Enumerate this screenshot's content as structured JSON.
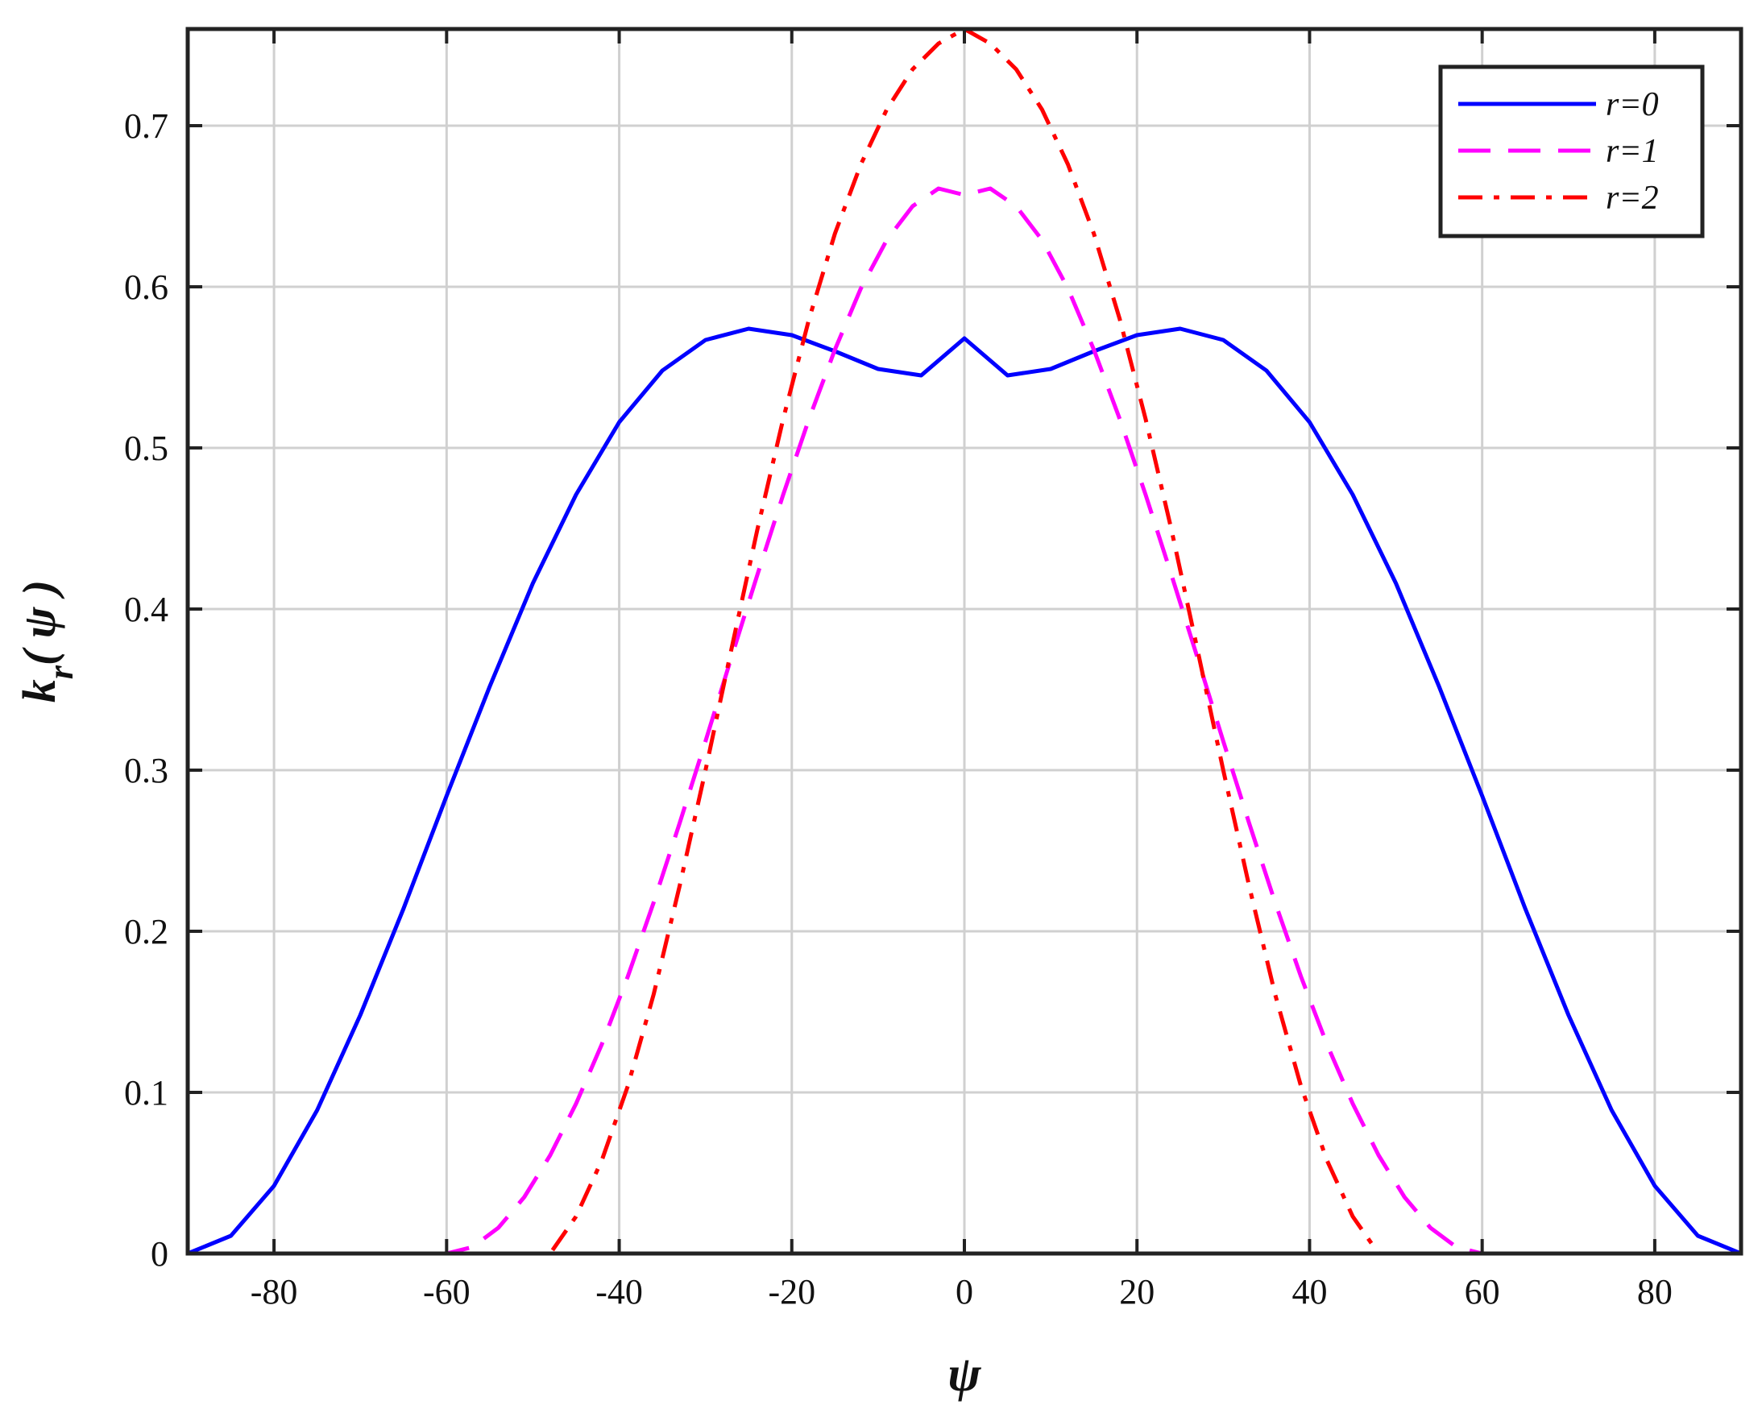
{
  "chart_data": {
    "type": "line",
    "title": "",
    "xlabel": "ψ",
    "ylabel": {
      "main": "k",
      "sub": "r",
      "arg": "( ψ )"
    },
    "xlim": [
      -90,
      90
    ],
    "ylim": [
      0,
      0.76
    ],
    "xticks": [
      -80,
      -60,
      -40,
      -20,
      0,
      20,
      40,
      60,
      80
    ],
    "yticks": [
      0,
      0.1,
      0.2,
      0.3,
      0.4,
      0.5,
      0.6,
      0.7
    ],
    "xtick_labels": [
      "-80",
      "-60",
      "-40",
      "-20",
      "0",
      "20",
      "40",
      "60",
      "80"
    ],
    "ytick_labels": [
      "0",
      "0.1",
      "0.2",
      "0.3",
      "0.4",
      "0.5",
      "0.6",
      "0.7"
    ],
    "grid": true,
    "legend_position": "top-right",
    "series": [
      {
        "name": "r=0",
        "color": "#0000ff",
        "style": "solid",
        "x": [
          -90,
          -85,
          -80,
          -75,
          -70,
          -65,
          -60,
          -55,
          -50,
          -45,
          -40,
          -35,
          -30,
          -25,
          -20,
          -15,
          -10,
          -5,
          0,
          5,
          10,
          15,
          20,
          25,
          30,
          35,
          40,
          45,
          50,
          55,
          60,
          65,
          70,
          75,
          80,
          85,
          90
        ],
        "y": [
          0,
          0.011,
          0.042,
          0.089,
          0.148,
          0.214,
          0.284,
          0.352,
          0.416,
          0.471,
          0.516,
          0.548,
          0.567,
          0.574,
          0.57,
          0.56,
          0.549,
          0.545,
          0.568,
          0.545,
          0.549,
          0.56,
          0.57,
          0.574,
          0.567,
          0.548,
          0.516,
          0.471,
          0.416,
          0.352,
          0.284,
          0.214,
          0.148,
          0.089,
          0.042,
          0.011,
          0
        ]
      },
      {
        "name": "r=1",
        "color": "#ff00ff",
        "style": "dashed",
        "x": [
          -90,
          -60,
          -57,
          -54,
          -51,
          -48,
          -45,
          -42,
          -39,
          -36,
          -33,
          -30,
          -27,
          -24,
          -21,
          -18,
          -15,
          -12,
          -9,
          -6,
          -3,
          0,
          3,
          6,
          9,
          12,
          15,
          18,
          21,
          24,
          27,
          30,
          33,
          36,
          39,
          42,
          45,
          48,
          51,
          54,
          57,
          60,
          90
        ],
        "y": [
          0,
          0,
          0.004,
          0.016,
          0.035,
          0.061,
          0.093,
          0.13,
          0.172,
          0.218,
          0.267,
          0.318,
          0.37,
          0.421,
          0.471,
          0.518,
          0.561,
          0.599,
          0.629,
          0.65,
          0.661,
          0.657,
          0.661,
          0.65,
          0.629,
          0.599,
          0.561,
          0.518,
          0.471,
          0.421,
          0.37,
          0.318,
          0.267,
          0.218,
          0.172,
          0.13,
          0.093,
          0.061,
          0.035,
          0.016,
          0.004,
          0,
          0
        ]
      },
      {
        "name": "r=2",
        "color": "#ff0000",
        "style": "dashdot",
        "x": [
          -90,
          -48,
          -45,
          -42,
          -39,
          -36,
          -33,
          -30,
          -27,
          -24,
          -21,
          -18,
          -15,
          -12,
          -9,
          -6,
          -3,
          0,
          3,
          6,
          9,
          12,
          15,
          18,
          21,
          24,
          27,
          30,
          33,
          36,
          39,
          42,
          45,
          48,
          90
        ],
        "y": [
          0,
          0,
          0.023,
          0.058,
          0.104,
          0.161,
          0.228,
          0.3,
          0.375,
          0.449,
          0.518,
          0.58,
          0.633,
          0.676,
          0.71,
          0.735,
          0.751,
          0.76,
          0.751,
          0.735,
          0.71,
          0.676,
          0.633,
          0.58,
          0.518,
          0.449,
          0.375,
          0.3,
          0.228,
          0.161,
          0.104,
          0.058,
          0.023,
          0,
          0
        ]
      }
    ]
  }
}
